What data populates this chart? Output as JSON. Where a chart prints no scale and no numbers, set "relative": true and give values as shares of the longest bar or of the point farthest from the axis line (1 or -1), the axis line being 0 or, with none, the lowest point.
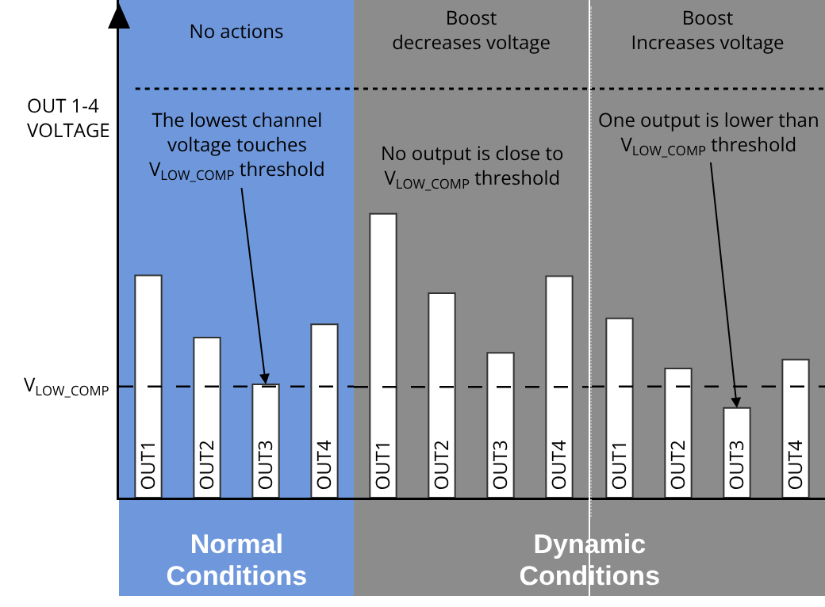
{
  "chart_data": [
    {
      "type": "bar",
      "title": "No actions",
      "xlabel": "Normal\nConditions",
      "categories": [
        "OUT1",
        "OUT2",
        "OUT3",
        "OUT4"
      ],
      "values": [
        1,
        0.72,
        0.51,
        0.78
      ],
      "color": "#ffffff",
      "relative": true,
      "tick_labels": "x",
      "annotations": [
        {
          "text": "The lowest channel\nvoltage touches\nV$_{LOW_COMP}$ threshold",
          "x": "OUT3",
          "y": 0.51
        }
      ],
      "ref_lines": [
        {
          "axis": "y",
          "value": 0.5,
          "label": "V$_{LOW_COMP}$",
          "color": "#000000",
          "line_style": "dashed"
        },
        {
          "axis": "y",
          "value": 1.84,
          "label": "OUT 1-4\nVOLTAGE",
          "color": "#000000",
          "line_style": "dotted"
        }
      ],
      "bands": [
        {
          "axis": "x",
          "from": "OUT1",
          "to": "OUT4",
          "color": "#6f98dc"
        }
      ]
    },
    {
      "type": "bar",
      "title": "Boost\ndecreases voltage",
      "xlabel": "Dynamic\nConditions",
      "categories": [
        "OUT1",
        "OUT2",
        "OUT3",
        "OUT4"
      ],
      "values": [
        1,
        0.72,
        0.51,
        0.78
      ],
      "color": "#ffffff",
      "relative": true,
      "tick_labels": "x",
      "annotations": [
        "No output is close to\nV$_{LOW_COMP}$ threshold"
      ],
      "ref_lines": [
        {
          "axis": "y",
          "value": 0.39,
          "color": "#000000",
          "line_style": "dashed"
        },
        {
          "axis": "y",
          "value": 1.44,
          "color": "#000000",
          "line_style": "dotted"
        }
      ],
      "bands": [
        {
          "axis": "x",
          "from": "OUT1",
          "to": "OUT4",
          "color": "#8c8c8c"
        }
      ]
    },
    {
      "type": "bar",
      "title": "Boost\nIncreases voltage",
      "categories": [
        "OUT1",
        "OUT2",
        "OUT3",
        "OUT4"
      ],
      "values": [
        1,
        0.72,
        0.5,
        0.77
      ],
      "color": "#ffffff",
      "relative": true,
      "tick_labels": "x",
      "annotations": [
        {
          "text": "One output is lower than\nV$_{LOW_COMP}$ threshold",
          "x": "OUT3",
          "y": 0.5
        }
      ],
      "ref_lines": [
        {
          "axis": "y",
          "value": 0.62,
          "color": "#000000",
          "line_style": "dashed"
        },
        {
          "axis": "y",
          "value": 2.28,
          "color": "#000000",
          "line_style": "dotted"
        }
      ],
      "bands": [
        {
          "axis": "x",
          "from": "OUT1",
          "to": "OUT4",
          "color": "#8c8c8c"
        }
      ]
    }
  ]
}
